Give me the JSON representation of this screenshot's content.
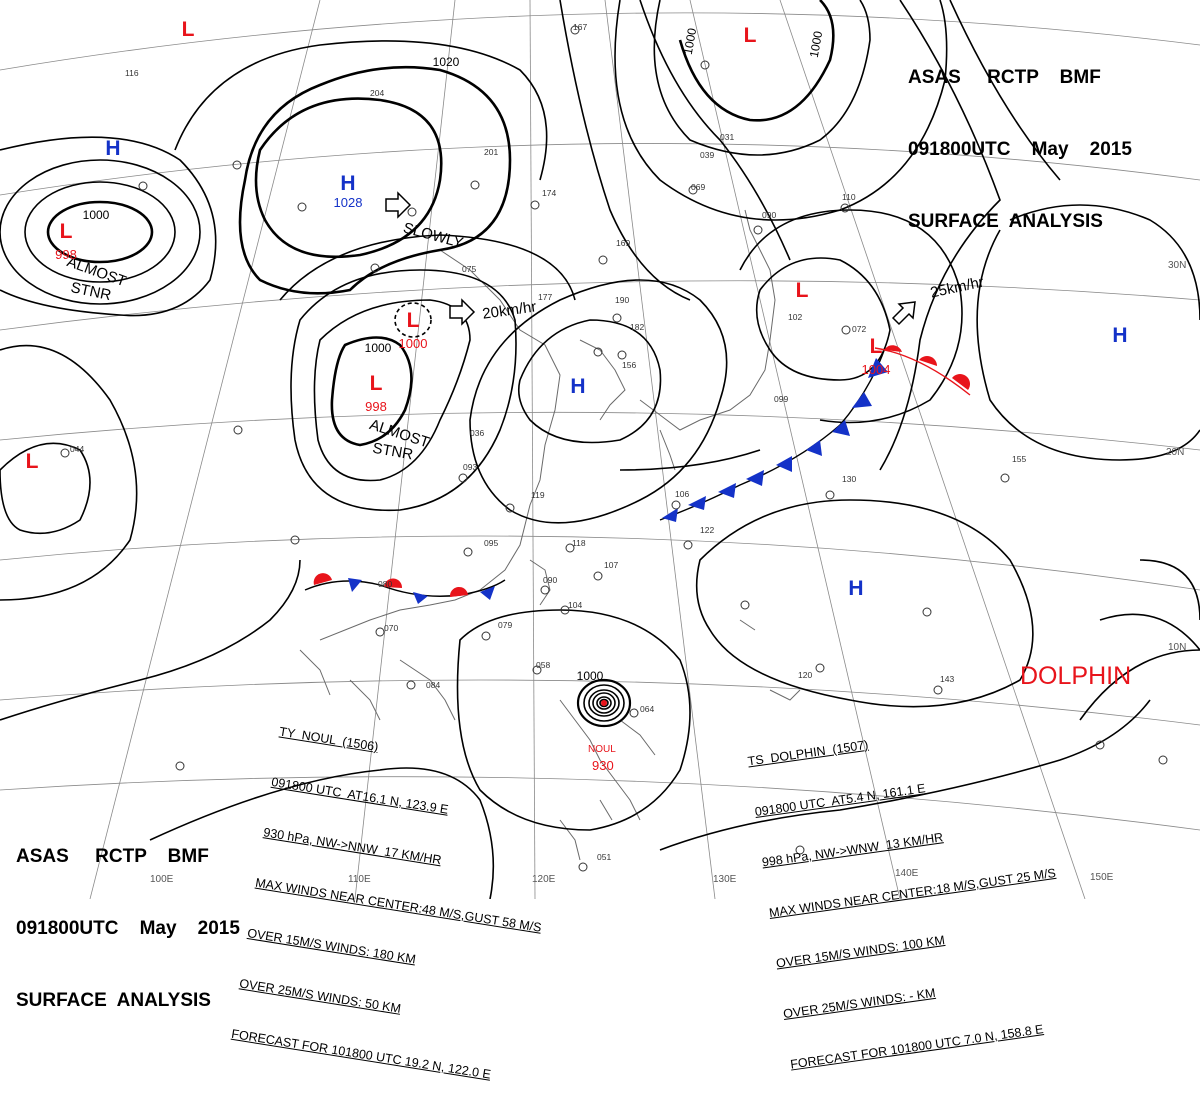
{
  "header": {
    "line1": "ASAS     RCTP    BMF",
    "line2": "091800UTC    May    2015",
    "line3": "SURFACE  ANALYSIS"
  },
  "colors": {
    "low": "#e8141b",
    "high": "#1432c8",
    "warm_front": "#e8141b",
    "cold_front": "#1432c8",
    "isobar": "#000000"
  },
  "pressure_centers": [
    {
      "type": "H",
      "label": "H",
      "value": "1028"
    },
    {
      "type": "H",
      "label": "H",
      "value": ""
    },
    {
      "type": "H",
      "label": "H",
      "value": ""
    },
    {
      "type": "H",
      "label": "H",
      "value": ""
    },
    {
      "type": "H",
      "label": "H",
      "value": ""
    },
    {
      "type": "L",
      "label": "L",
      "value": "998"
    },
    {
      "type": "L",
      "label": "L",
      "value": "1000"
    },
    {
      "type": "L",
      "label": "L",
      "value": "998"
    },
    {
      "type": "L",
      "label": "L",
      "value": "1004"
    },
    {
      "type": "L",
      "label": "L",
      "value": ""
    },
    {
      "type": "L",
      "label": "L",
      "value": ""
    },
    {
      "type": "L",
      "label": "L",
      "value": ""
    },
    {
      "type": "L",
      "label": "L",
      "value": ""
    }
  ],
  "isobar_labels": [
    "1020",
    "1000",
    "1000",
    "1000",
    "1000",
    "1000"
  ],
  "motion_labels": [
    "SLOWLY",
    "20km/hr",
    "25km/hr",
    "ALMOST",
    "STNR",
    "ALMOST",
    "STNR"
  ],
  "lat_labels": [
    "30N",
    "20N",
    "10N"
  ],
  "lon_labels": [
    "100E",
    "110E",
    "120E",
    "130E",
    "140E",
    "150E"
  ],
  "typhoon_name": "NOUL",
  "typhoon_pressure": "930",
  "storm_label": "DOLPHIN",
  "noul": {
    "title": "TY  NOUL  (1506)",
    "line1": "091800 UTC  AT16.1 N, 123.9 E",
    "line2": "930 hPa, NW->NNW  17 KM/HR",
    "line3": "MAX WINDS NEAR CENTER:48 M/S,GUST 58 M/S",
    "line4": "OVER 15M/S WINDS: 180 KM",
    "line5": "OVER 25M/S WINDS: 50 KM",
    "line6": "FORECAST FOR 101800 UTC 19.2 N, 122.0 E"
  },
  "dolphin": {
    "title": "TS  DOLPHIN  (1507)",
    "line1": "091800 UTC  AT5.4 N, 161.1 E",
    "line2": "998 hPa, NW->WNW  13 KM/HR",
    "line3": "MAX WINDS NEAR CENTER:18 M/S,GUST 25 M/S",
    "line4": "OVER 15M/S WINDS: 100 KM",
    "line5": "OVER 25M/S WINDS: - KM",
    "line6": "FORECAST FOR 101800 UTC 7.0 N, 158.8 E"
  },
  "station_reports": [
    "167",
    "116",
    "204",
    "201",
    "174",
    "169",
    "177",
    "190",
    "182",
    "156",
    "075",
    "093",
    "119",
    "095",
    "118",
    "107",
    "090",
    "104",
    "070",
    "079",
    "084",
    "058",
    "064",
    "106",
    "122",
    "130",
    "155",
    "072",
    "090",
    "110",
    "039",
    "031",
    "069",
    "120",
    "143",
    "051",
    "044",
    "080",
    "036",
    "099",
    "102"
  ]
}
